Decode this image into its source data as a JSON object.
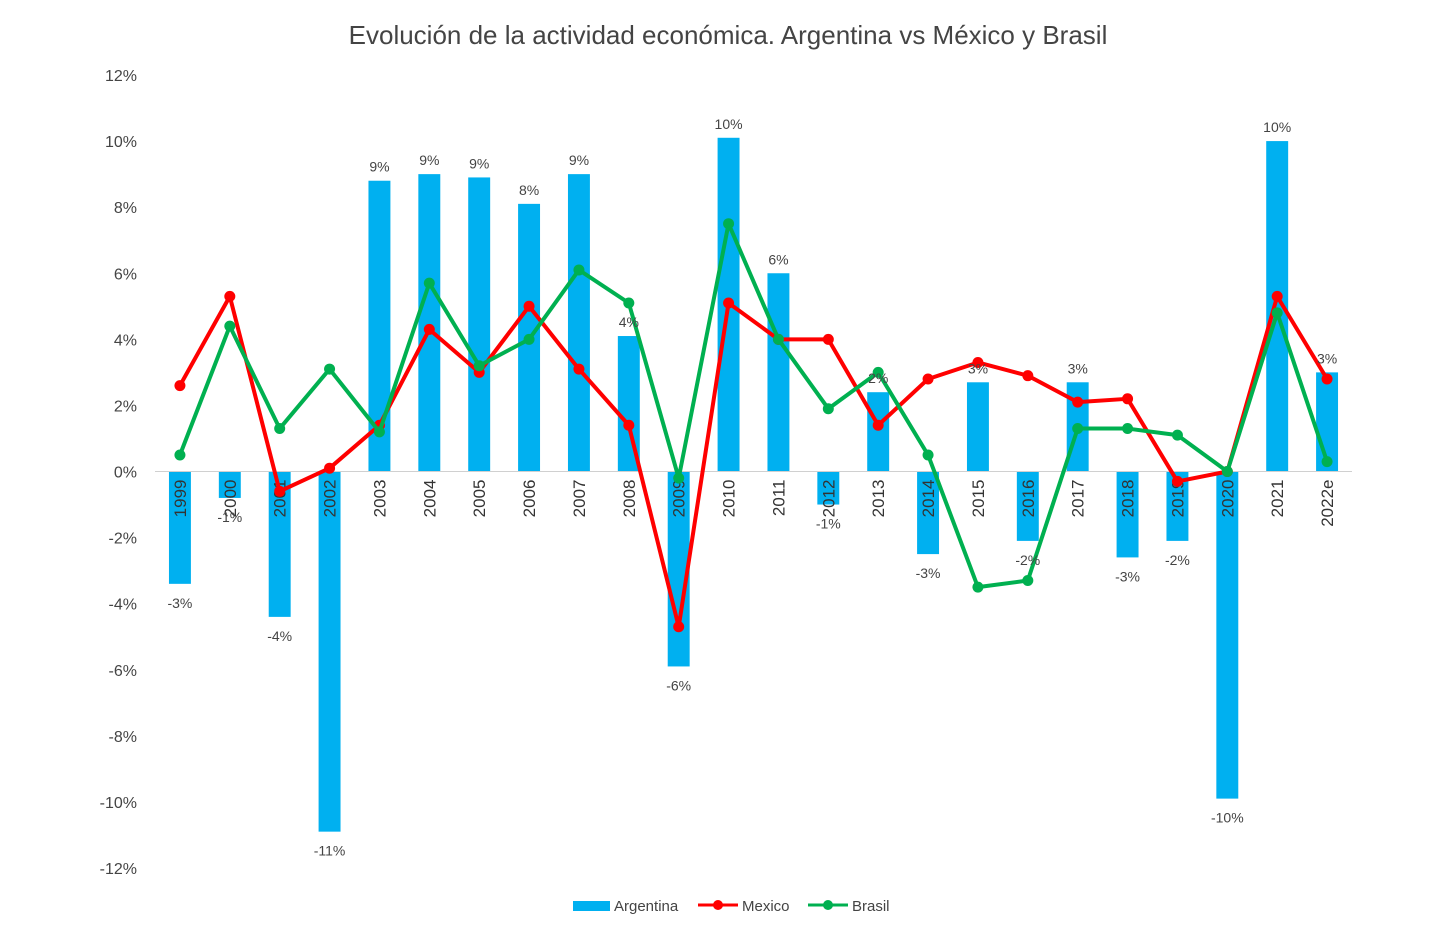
{
  "chart_data": {
    "type": "bar",
    "title": "Evolución de la actividad económica. Argentina vs México y Brasil",
    "xlabel": "",
    "ylabel": "",
    "ylim": [
      -12,
      12
    ],
    "yticks": [
      12,
      10,
      8,
      6,
      4,
      2,
      0,
      -2,
      -4,
      -6,
      -8,
      -10,
      -12
    ],
    "ytick_labels": [
      "12%",
      "10%",
      "8%",
      "6%",
      "4%",
      "2%",
      "0%",
      "-2%",
      "-4%",
      "-6%",
      "-8%",
      "-10%",
      "-12%"
    ],
    "categories": [
      "1999",
      "2000",
      "2001",
      "2002",
      "2003",
      "2004",
      "2005",
      "2006",
      "2007",
      "2008",
      "2009",
      "2010",
      "2011",
      "2012",
      "2013",
      "2014",
      "2015",
      "2016",
      "2017",
      "2018",
      "2019",
      "2020",
      "2021",
      "2022e"
    ],
    "grid": false,
    "legend_position": "bottom",
    "series": [
      {
        "name": "Argentina",
        "kind": "bar",
        "color": "#00B0F0",
        "values": [
          -3.4,
          -0.8,
          -4.4,
          -10.9,
          8.8,
          9.0,
          8.9,
          8.1,
          9.0,
          4.1,
          -5.9,
          10.1,
          6.0,
          -1.0,
          2.4,
          -2.5,
          2.7,
          -2.1,
          2.7,
          -2.6,
          -2.1,
          -9.9,
          10.0,
          3.0
        ],
        "labels": [
          "-3%",
          "-1%",
          "-4%",
          "-11%",
          "9%",
          "9%",
          "9%",
          "8%",
          "9%",
          "4%",
          "-6%",
          "10%",
          "6%",
          "-1%",
          "2%",
          "-3%",
          "3%",
          "-2%",
          "3%",
          "-3%",
          "-2%",
          "-10%",
          "10%",
          "3%"
        ]
      },
      {
        "name": "Mexico",
        "kind": "line",
        "color": "#FF0000",
        "values": [
          2.6,
          5.3,
          -0.6,
          0.1,
          1.4,
          4.3,
          3.0,
          5.0,
          3.1,
          1.4,
          -4.7,
          5.1,
          4.0,
          4.0,
          1.4,
          2.8,
          3.3,
          2.9,
          2.1,
          2.2,
          -0.3,
          0.0,
          5.3,
          2.8
        ]
      },
      {
        "name": "Brasil",
        "kind": "line",
        "color": "#00B050",
        "values": [
          0.5,
          4.4,
          1.3,
          3.1,
          1.2,
          5.7,
          3.2,
          4.0,
          6.1,
          5.1,
          -0.2,
          7.5,
          4.0,
          1.9,
          3.0,
          0.5,
          -3.5,
          -3.3,
          1.3,
          1.3,
          1.1,
          0.0,
          4.8,
          0.3
        ]
      }
    ]
  }
}
